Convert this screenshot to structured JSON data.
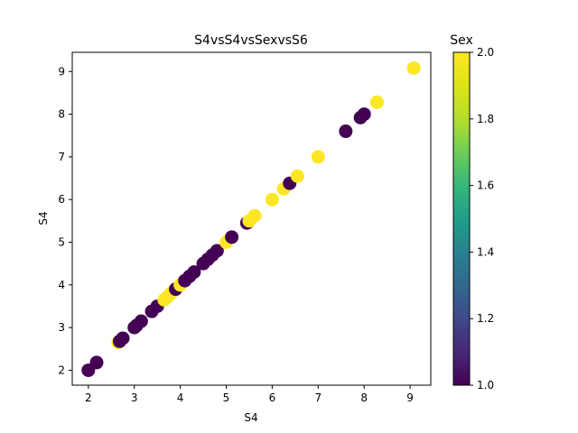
{
  "chart_data": {
    "type": "scatter",
    "title": "S4vsS4vsSexvsS6",
    "xlabel": "S4",
    "ylabel": "S4",
    "xlim": [
      1.65,
      9.45
    ],
    "ylim": [
      1.65,
      9.45
    ],
    "xticks": [
      2,
      3,
      4,
      5,
      6,
      7,
      8,
      9
    ],
    "yticks": [
      2,
      3,
      4,
      5,
      6,
      7,
      8,
      9
    ],
    "grid": false,
    "colorbar": {
      "label": "Sex",
      "range": [
        1.0,
        2.0
      ],
      "ticks": [
        "1.0",
        "1.2",
        "1.4",
        "1.6",
        "1.8",
        "2.0"
      ],
      "colormap": "viridis",
      "colors": {
        "low": "#440154",
        "high": "#fde725"
      }
    },
    "points": [
      {
        "x": 2.0,
        "y": 2.0,
        "sex": 1
      },
      {
        "x": 2.18,
        "y": 2.18,
        "sex": 1
      },
      {
        "x": 2.65,
        "y": 2.65,
        "sex": 2
      },
      {
        "x": 2.68,
        "y": 2.68,
        "sex": 1
      },
      {
        "x": 2.75,
        "y": 2.75,
        "sex": 1
      },
      {
        "x": 3.0,
        "y": 3.0,
        "sex": 1
      },
      {
        "x": 3.05,
        "y": 3.05,
        "sex": 1
      },
      {
        "x": 3.15,
        "y": 3.15,
        "sex": 1
      },
      {
        "x": 3.38,
        "y": 3.38,
        "sex": 1
      },
      {
        "x": 3.5,
        "y": 3.5,
        "sex": 1
      },
      {
        "x": 3.65,
        "y": 3.65,
        "sex": 2
      },
      {
        "x": 3.72,
        "y": 3.72,
        "sex": 2
      },
      {
        "x": 3.8,
        "y": 3.8,
        "sex": 2
      },
      {
        "x": 3.9,
        "y": 3.9,
        "sex": 1
      },
      {
        "x": 4.0,
        "y": 4.0,
        "sex": 2
      },
      {
        "x": 4.1,
        "y": 4.1,
        "sex": 1
      },
      {
        "x": 4.2,
        "y": 4.2,
        "sex": 1
      },
      {
        "x": 4.3,
        "y": 4.3,
        "sex": 1
      },
      {
        "x": 4.5,
        "y": 4.5,
        "sex": 1
      },
      {
        "x": 4.6,
        "y": 4.6,
        "sex": 1
      },
      {
        "x": 4.7,
        "y": 4.7,
        "sex": 1
      },
      {
        "x": 4.8,
        "y": 4.8,
        "sex": 1
      },
      {
        "x": 5.0,
        "y": 5.0,
        "sex": 2
      },
      {
        "x": 5.12,
        "y": 5.12,
        "sex": 1
      },
      {
        "x": 5.45,
        "y": 5.45,
        "sex": 1
      },
      {
        "x": 5.5,
        "y": 5.5,
        "sex": 2
      },
      {
        "x": 5.62,
        "y": 5.62,
        "sex": 2
      },
      {
        "x": 6.0,
        "y": 6.0,
        "sex": 2
      },
      {
        "x": 6.25,
        "y": 6.25,
        "sex": 2
      },
      {
        "x": 6.38,
        "y": 6.38,
        "sex": 1
      },
      {
        "x": 6.55,
        "y": 6.55,
        "sex": 2
      },
      {
        "x": 7.0,
        "y": 7.0,
        "sex": 2
      },
      {
        "x": 7.6,
        "y": 7.6,
        "sex": 1
      },
      {
        "x": 7.92,
        "y": 7.92,
        "sex": 1
      },
      {
        "x": 8.0,
        "y": 8.0,
        "sex": 1
      },
      {
        "x": 8.28,
        "y": 8.28,
        "sex": 2
      },
      {
        "x": 9.08,
        "y": 9.08,
        "sex": 2
      }
    ]
  }
}
